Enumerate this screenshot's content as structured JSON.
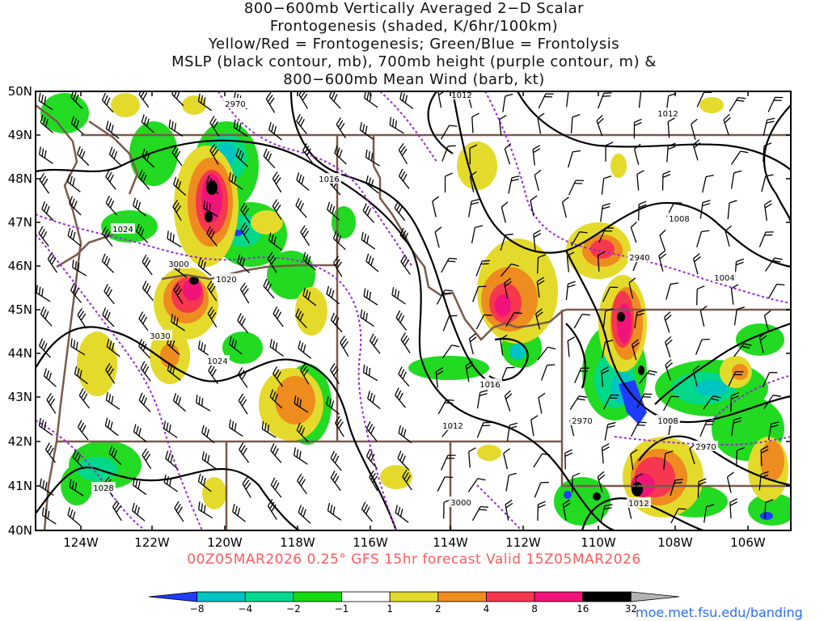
{
  "title": {
    "line1": "800−600mb Vertically Averaged 2−D Scalar",
    "line2": "Frontogenesis (shaded, K/6hr/100km)",
    "line3": "Yellow/Red = Frontogenesis;  Green/Blue = Frontolysis",
    "line4": "MSLP (black contour, mb), 700mb height (purple contour, m) &",
    "line5": "800−600mb Mean Wind (barb, kt)"
  },
  "axes": {
    "lat_labels": [
      "50N",
      "49N",
      "48N",
      "47N",
      "46N",
      "45N",
      "44N",
      "43N",
      "42N",
      "41N",
      "40N"
    ],
    "lon_labels": [
      "124W",
      "122W",
      "120W",
      "118W",
      "116W",
      "114W",
      "112W",
      "110W",
      "108W",
      "106W"
    ]
  },
  "contour_labels": {
    "mslp": [
      "1012",
      "1012",
      "1016",
      "1024",
      "1020",
      "1024",
      "1016",
      "1012",
      "1008",
      "1004",
      "1008",
      "1012",
      "1028"
    ],
    "height": [
      "2970",
      "3000",
      "3030",
      "2940",
      "2970",
      "2970",
      "3000"
    ]
  },
  "footer": {
    "caption": "00Z05MAR2026 0.25° GFS 15hr forecast Valid 15Z05MAR2026",
    "url": "moe.met.fsu.edu/banding"
  },
  "colorbar": {
    "labels": [
      "−8",
      "−4",
      "−2",
      "−1",
      "1",
      "2",
      "4",
      "8",
      "16",
      "32"
    ],
    "colors": [
      "#1f3dff",
      "#00c3c3",
      "#00d890",
      "#16d916",
      "#ffffff",
      "#e4da2c",
      "#ee8c20",
      "#f5384e",
      "#f0147a",
      "#000000",
      "#b4b4b4"
    ]
  },
  "map_colors": {
    "state_border": "#7a5a4a",
    "mslp": "#000000",
    "height": "#9b27d8",
    "barb": "#000000"
  }
}
